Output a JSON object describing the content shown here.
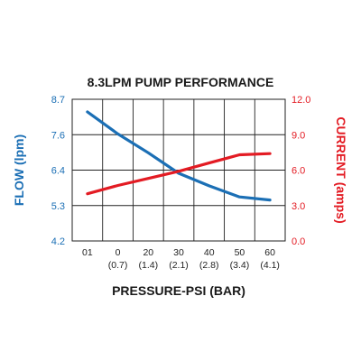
{
  "chart_data": {
    "type": "line",
    "title": "8.3LPM PUMP PERFORMANCE",
    "xlabel": "PRESSURE-PSI (BAR)",
    "x_ticks": [
      {
        "psi": "01",
        "bar": ""
      },
      {
        "psi": "0",
        "bar": "(0.7)"
      },
      {
        "psi": "20",
        "bar": "(1.4)"
      },
      {
        "psi": "30",
        "bar": "(2.1)"
      },
      {
        "psi": "40",
        "bar": "(2.8)"
      },
      {
        "psi": "50",
        "bar": "(3.4)"
      },
      {
        "psi": "60",
        "bar": "(4.1)"
      }
    ],
    "left_axis": {
      "label": "FLOW (lpm)",
      "color": "#1b6fb5",
      "ylim": [
        4.2,
        8.7
      ],
      "ticks": [
        "4.2",
        "5.3",
        "6.4",
        "7.6",
        "8.7"
      ]
    },
    "right_axis": {
      "label": "CURRENT (amps)",
      "color": "#e31b23",
      "ylim": [
        0.0,
        12.0
      ],
      "ticks": [
        "0.0",
        "3.0",
        "6.0",
        "9.0",
        "12.0"
      ]
    },
    "grid": true,
    "series": [
      {
        "axis": "left",
        "color": "#1b6fb5",
        "values": [
          8.3,
          7.6,
          7.0,
          6.35,
          5.95,
          5.6,
          5.5
        ]
      },
      {
        "axis": "right",
        "color": "#e31b23",
        "values": [
          4.0,
          4.7,
          5.3,
          5.9,
          6.6,
          7.3,
          7.4
        ]
      }
    ]
  }
}
